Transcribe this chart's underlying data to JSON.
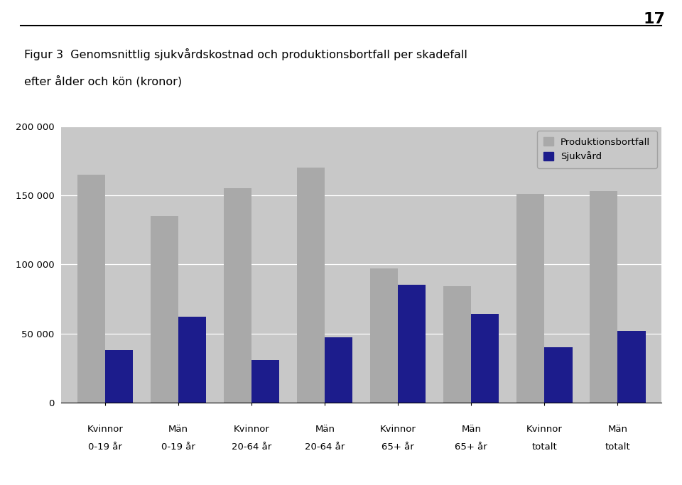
{
  "title_line1": "Figur 3  Genomsnittlig sjukvårdskostnad och produktionsbortfall per skadefall",
  "title_line2": "efter ålder och kön (kronor)",
  "page_number": "17",
  "categories_line1": [
    "Kvinnor",
    "Män",
    "Kvinnor",
    "Män",
    "Kvinnor",
    "Män",
    "Kvinnor",
    "Män"
  ],
  "categories_line2": [
    "0-19 år",
    "0-19 år",
    "20-64 år",
    "20-64 år",
    "65+ år",
    "65+ år",
    "totalt",
    "totalt"
  ],
  "produktionsbortfall": [
    165000,
    135000,
    155000,
    170000,
    97000,
    84000,
    151000,
    153000
  ],
  "sjukvard": [
    38000,
    62000,
    31000,
    47000,
    85000,
    64000,
    40000,
    52000
  ],
  "bar_color_prod": "#A9A9A9",
  "bar_color_sjuk": "#1C1C8C",
  "legend_prod": "Produktionsbortfall",
  "legend_sjuk": "Sjukvård",
  "ylim": [
    0,
    200000
  ],
  "yticks": [
    0,
    50000,
    100000,
    150000,
    200000
  ],
  "ytick_labels": [
    "0",
    "50 000",
    "100 000",
    "150 000",
    "200 000"
  ],
  "plot_bg_color": "#C8C8C8",
  "title_fontsize": 11.5,
  "tick_fontsize": 9.5,
  "legend_fontsize": 9.5,
  "bar_width": 0.38
}
